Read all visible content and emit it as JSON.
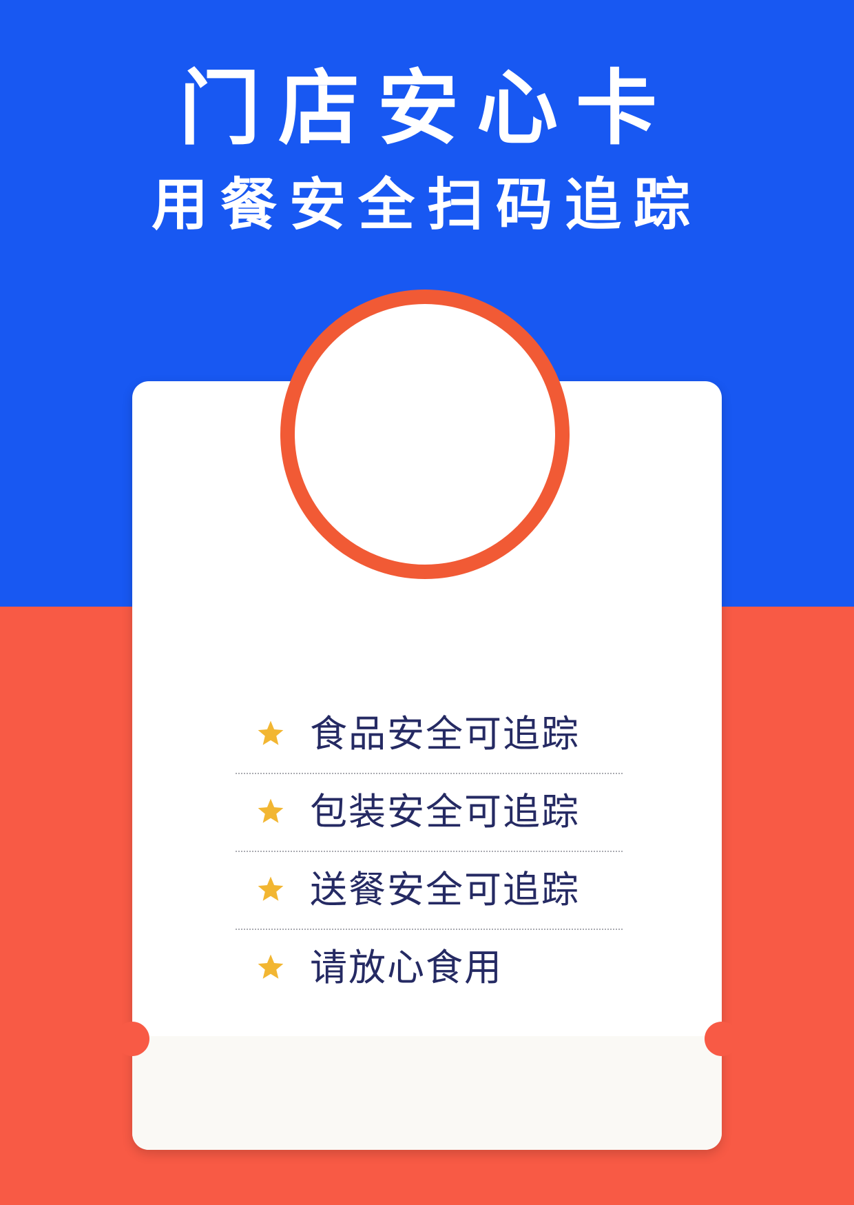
{
  "header": {
    "title": "门店安心卡",
    "subtitle": "用餐安全扫码追踪"
  },
  "features": [
    {
      "text": "食品安全可追踪",
      "icon": "star-icon"
    },
    {
      "text": "包装安全可追踪",
      "icon": "star-icon"
    },
    {
      "text": "送餐安全可追踪",
      "icon": "star-icon"
    },
    {
      "text": "请放心食用",
      "icon": "star-icon"
    }
  ],
  "colors": {
    "blue": "#1858f2",
    "red": "#f85a45",
    "ring": "#f15a35",
    "star": "#f2b632",
    "text": "#252a63"
  }
}
